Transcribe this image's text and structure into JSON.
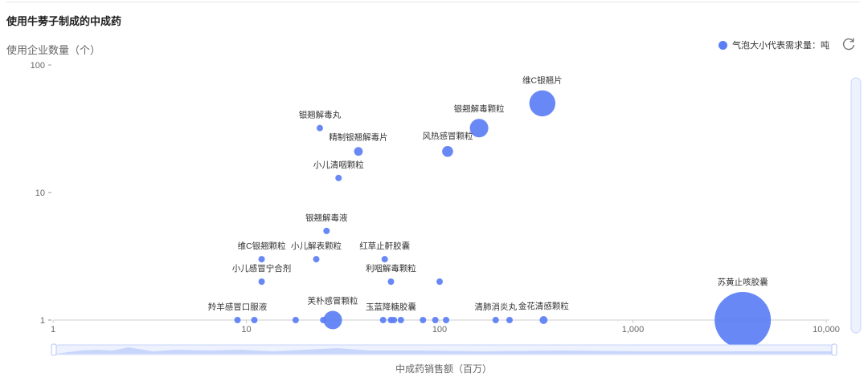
{
  "header": {
    "title": "使用牛蒡子制成的中成药",
    "y_axis_label": "使用企业数量（个）",
    "x_axis_label": "中成药销售额（百万）",
    "legend_text": "气泡大小代表需求量：吨",
    "refresh_icon": "refresh-icon"
  },
  "colors": {
    "bubble": "#5b7ef5",
    "slider": "#c9d6fb"
  },
  "chart_data": {
    "type": "scatter",
    "title": "使用牛蒡子制成的中成药",
    "xlabel": "中成药销售额（百万）",
    "ylabel": "使用企业数量（个）",
    "x_scale": "log",
    "y_scale": "log",
    "xlim": [
      1,
      10000
    ],
    "ylim": [
      1,
      100
    ],
    "x_ticks": [
      "1",
      "10",
      "100",
      "1,000",
      "10,000"
    ],
    "y_ticks": [
      "1",
      "10",
      "100"
    ],
    "legend": "top-right",
    "grid": false,
    "points": [
      {
        "label": "维C银翘片",
        "x": 340,
        "y": 50,
        "size": 2.0
      },
      {
        "label": "银翘解毒颗粒",
        "x": 160,
        "y": 32,
        "size": 1.5
      },
      {
        "label": "风热感冒颗粒",
        "x": 110,
        "y": 21,
        "size": 1.0
      },
      {
        "label": "精制银翘解毒片",
        "x": 38,
        "y": 21,
        "size": 0.85
      },
      {
        "label": "银翘解毒丸",
        "x": 24,
        "y": 32,
        "size": 0.7
      },
      {
        "label": "小儿清咽颗粒",
        "x": 30,
        "y": 13,
        "size": 0.7
      },
      {
        "label": "银翘解毒液",
        "x": 26,
        "y": 5,
        "size": 0.7
      },
      {
        "label": "维C银翘颗粒",
        "x": 12,
        "y": 3,
        "size": 0.7
      },
      {
        "label": "小儿解表颗粒",
        "x": 23,
        "y": 3,
        "size": 0.7
      },
      {
        "label": "红草止鼾胶囊",
        "x": 52,
        "y": 3,
        "size": 0.7
      },
      {
        "label": "小儿感冒宁合剂",
        "x": 12,
        "y": 2,
        "size": 0.7
      },
      {
        "label": "利咽解毒颗粒",
        "x": 56,
        "y": 2,
        "size": 0.7
      },
      {
        "label": "",
        "x": 100,
        "y": 2,
        "size": 0.7
      },
      {
        "label": "羚羊感冒口服液",
        "x": 9,
        "y": 1,
        "size": 0.7
      },
      {
        "label": "",
        "x": 11,
        "y": 1,
        "size": 0.7
      },
      {
        "label": "",
        "x": 18,
        "y": 1,
        "size": 0.7
      },
      {
        "label": "",
        "x": 25,
        "y": 1,
        "size": 0.7
      },
      {
        "label": "芙朴感冒颗粒",
        "x": 28,
        "y": 1,
        "size": 1.5
      },
      {
        "label": "",
        "x": 51,
        "y": 1,
        "size": 0.7
      },
      {
        "label": "玉蓝降糖胶囊",
        "x": 56,
        "y": 1,
        "size": 0.7
      },
      {
        "label": "",
        "x": 58,
        "y": 1,
        "size": 0.7
      },
      {
        "label": "",
        "x": 63,
        "y": 1,
        "size": 0.7
      },
      {
        "label": "",
        "x": 82,
        "y": 1,
        "size": 0.7
      },
      {
        "label": "",
        "x": 95,
        "y": 1,
        "size": 0.7
      },
      {
        "label": "",
        "x": 108,
        "y": 1,
        "size": 0.7
      },
      {
        "label": "清肺消炎丸",
        "x": 195,
        "y": 1,
        "size": 0.7
      },
      {
        "label": "",
        "x": 230,
        "y": 1,
        "size": 0.7
      },
      {
        "label": "金花清感颗粒",
        "x": 345,
        "y": 1,
        "size": 0.8
      },
      {
        "label": "苏黄止咳胶囊",
        "x": 3700,
        "y": 1,
        "size": 4.0
      }
    ]
  }
}
